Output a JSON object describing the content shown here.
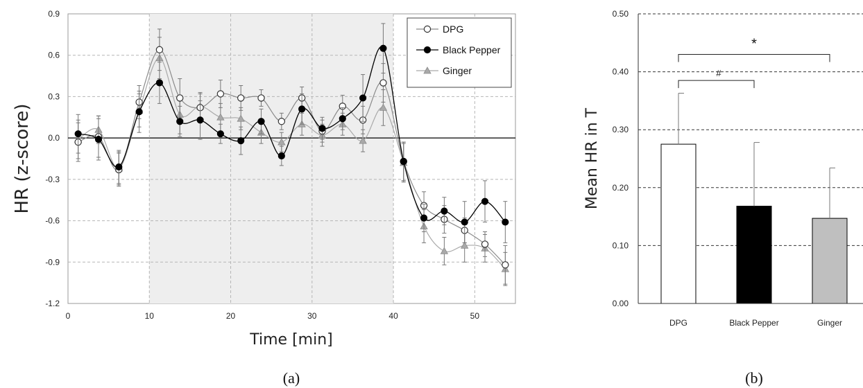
{
  "chart_data": [
    {
      "type": "line",
      "title": "",
      "xlabel": "Time [min]",
      "ylabel": "HR (z-score)",
      "xlim": [
        0,
        55
      ],
      "ylim": [
        -1.2,
        0.9
      ],
      "xticks": [
        "0",
        "10",
        "20",
        "30",
        "40",
        "50"
      ],
      "yticks": [
        "0.9",
        "0.6",
        "0.3",
        "0.0",
        "-0.3",
        "-0.6",
        "-0.9",
        "-1.2"
      ],
      "shaded_range": [
        10,
        40
      ],
      "grid": true,
      "legend_position": "top-right",
      "caption": "(a)",
      "x": [
        1.25,
        3.75,
        6.25,
        8.75,
        11.25,
        13.75,
        16.25,
        18.75,
        21.25,
        23.75,
        26.25,
        28.75,
        31.25,
        33.75,
        36.25,
        38.75,
        41.25,
        43.75,
        46.25,
        48.75,
        51.25,
        53.75
      ],
      "series": [
        {
          "name": "DPG",
          "marker": "open-circle",
          "color": "#8a8a8a",
          "values": [
            -0.03,
            0.01,
            -0.23,
            0.26,
            0.64,
            0.29,
            0.22,
            0.32,
            0.29,
            0.29,
            0.12,
            0.29,
            0.05,
            0.23,
            0.13,
            0.4,
            -0.17,
            -0.49,
            -0.59,
            -0.67,
            -0.77,
            -0.92
          ],
          "errors": [
            0.14,
            0.15,
            0.12,
            0.12,
            0.15,
            0.14,
            0.1,
            0.1,
            0.09,
            0.06,
            0.06,
            0.08,
            0.08,
            0.08,
            0.1,
            0.14,
            0.14,
            0.1,
            0.1,
            0.09,
            0.09,
            0.14
          ]
        },
        {
          "name": "Black Pepper",
          "marker": "filled-circle",
          "color": "#000000",
          "values": [
            0.03,
            -0.01,
            -0.21,
            0.19,
            0.4,
            0.12,
            0.13,
            0.03,
            -0.02,
            0.12,
            -0.13,
            0.21,
            0.07,
            0.14,
            0.29,
            0.65,
            -0.17,
            -0.58,
            -0.53,
            -0.61,
            -0.46,
            -0.61
          ],
          "errors": [
            0.14,
            0.15,
            0.12,
            0.15,
            0.15,
            0.11,
            0.14,
            0.07,
            0.1,
            0.09,
            0.07,
            0.11,
            0.08,
            0.08,
            0.17,
            0.18,
            0.14,
            0.1,
            0.1,
            0.15,
            0.15,
            0.15
          ]
        },
        {
          "name": "Ginger",
          "marker": "triangle",
          "color": "#a9a9a9",
          "values": [
            -0.01,
            0.06,
            -0.22,
            0.2,
            0.58,
            0.17,
            0.23,
            0.15,
            0.14,
            0.04,
            -0.03,
            0.1,
            0.02,
            0.1,
            -0.02,
            0.22,
            -0.18,
            -0.64,
            -0.82,
            -0.78,
            -0.8,
            -0.95
          ],
          "errors": [
            0.14,
            0.1,
            0.12,
            0.12,
            0.15,
            0.14,
            0.1,
            0.1,
            0.08,
            0.08,
            0.07,
            0.08,
            0.08,
            0.08,
            0.08,
            0.13,
            0.14,
            0.12,
            0.1,
            0.12,
            0.1,
            0.12
          ]
        }
      ]
    },
    {
      "type": "bar",
      "title": "",
      "xlabel": "",
      "ylabel": "Mean HR in T",
      "ylim": [
        0,
        0.5
      ],
      "yticks": [
        "0.50",
        "0.40",
        "0.30",
        "0.20",
        "0.10",
        "0.00"
      ],
      "categories": [
        "DPG",
        "Black Pepper",
        "Ginger"
      ],
      "values": [
        0.275,
        0.168,
        0.147
      ],
      "errors": [
        0.088,
        0.11,
        0.087
      ],
      "bar_colors": [
        "#ffffff",
        "#000000",
        "#bfbfbf"
      ],
      "grid": true,
      "caption": "(b)",
      "significance": [
        {
          "from": "DPG",
          "to": "Ginger",
          "label": "*",
          "y": 0.43
        },
        {
          "from": "DPG",
          "to": "Black Pepper",
          "label": "#",
          "y": 0.385
        }
      ]
    }
  ]
}
